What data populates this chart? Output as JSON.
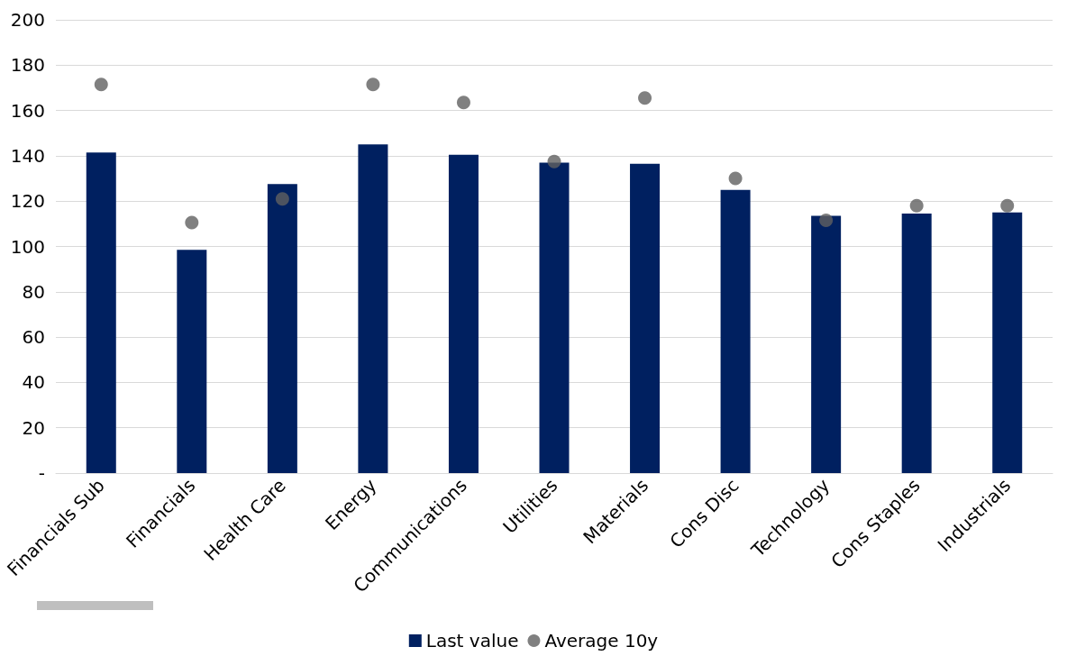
{
  "chart_data": {
    "type": "bar",
    "categories": [
      "Financials Sub",
      "Financials",
      "Health Care",
      "Energy",
      "Communications",
      "Utilities",
      "Materials",
      "Cons Disc",
      "Technology",
      "Cons Staples",
      "Industrials"
    ],
    "series": [
      {
        "name": "Last value",
        "color": "#002060",
        "values": [
          141.5,
          98.5,
          127.5,
          145,
          140.5,
          137,
          136.5,
          125,
          113.5,
          114.5,
          115
        ]
      },
      {
        "name": "Average 10y",
        "type": "scatter",
        "color": "#606060",
        "marker": "circle",
        "x": [
          "Financials Sub",
          "Financials",
          "Health Care",
          "Energy",
          "Communications",
          "Utilities",
          "Materials",
          "Cons Disc",
          "Technology",
          "Cons Staples",
          "Industrials"
        ],
        "values": [
          171.5,
          110.5,
          121,
          171.5,
          163.5,
          137.5,
          165.5,
          130,
          111.5,
          118,
          118
        ]
      }
    ],
    "ylim": [
      0,
      200
    ],
    "yticks": [
      {
        "value": 0,
        "label": "-"
      },
      20,
      40,
      60,
      80,
      100,
      120,
      140,
      160,
      180,
      200
    ],
    "grid": "y",
    "legend": "bottom"
  }
}
